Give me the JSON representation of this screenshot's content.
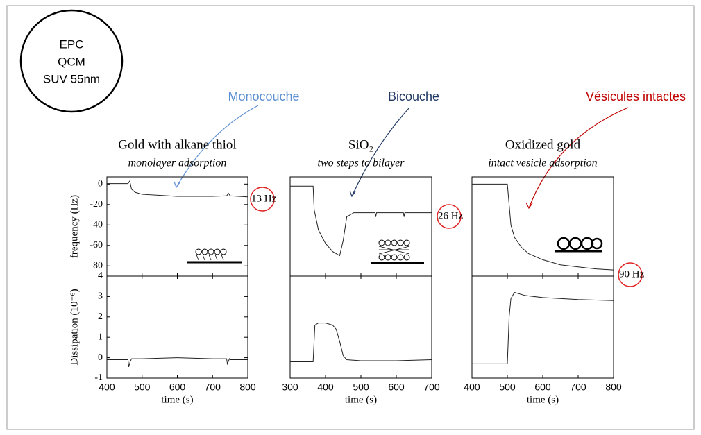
{
  "slide": {
    "badge": [
      "EPC",
      "QCM",
      "SUV 55nm"
    ],
    "annotations": [
      {
        "text": "Monocouche",
        "color": "#5b8fd1"
      },
      {
        "text": "Bicouche",
        "color": "#1f3864"
      },
      {
        "text": "Vésicules intactes",
        "color": "#c00000"
      }
    ]
  },
  "chart_data": [
    {
      "type": "line",
      "title": "Gold with alkane thiol",
      "subtitle": "monolayer adsorption",
      "ylabel": "frequency (Hz)",
      "annotation": "13 Hz",
      "color": "#222222",
      "x": [
        400,
        460,
        465,
        470,
        480,
        500,
        550,
        600,
        650,
        700,
        740,
        745,
        750,
        800
      ],
      "values": [
        0.5,
        0.5,
        3,
        -5,
        -8,
        -10,
        -11,
        -12,
        -12,
        -12,
        -11.5,
        -9,
        -11.5,
        -12.5
      ],
      "xlim": [
        400,
        800
      ],
      "ylim": [
        -90,
        7
      ],
      "yticks": [
        0,
        -20,
        -40,
        -60,
        -80
      ]
    },
    {
      "type": "line",
      "ylabel": "Dissipation (10⁻⁶)",
      "xlabel": "time (s)",
      "color": "#222222",
      "x": [
        400,
        460,
        462,
        466,
        470,
        500,
        600,
        700,
        740,
        742,
        748,
        750,
        800
      ],
      "values": [
        -0.1,
        -0.1,
        -0.45,
        -0.2,
        -0.05,
        -0.05,
        0,
        -0.05,
        -0.05,
        -0.3,
        -0.05,
        -0.1,
        -0.1
      ],
      "xlim": [
        400,
        800
      ],
      "ylim": [
        -1,
        4
      ],
      "xticks": [
        400,
        500,
        600,
        700,
        800
      ],
      "yticks": [
        -1,
        0,
        1,
        2,
        3,
        4
      ]
    },
    {
      "type": "line",
      "title": "SiO₂",
      "subtitle": "two steps to bilayer",
      "annotation": "26 Hz",
      "color": "#222222",
      "x": [
        300,
        365,
        368,
        380,
        400,
        420,
        440,
        450,
        460,
        480,
        500,
        540,
        542,
        544,
        620,
        622,
        624,
        700
      ],
      "values": [
        -2,
        -2,
        -25,
        -45,
        -58,
        -66,
        -70,
        -55,
        -32,
        -28,
        -28,
        -28,
        -32,
        -28,
        -28,
        -32,
        -28,
        -28
      ],
      "xlim": [
        300,
        700
      ],
      "ylim": [
        -90,
        7
      ]
    },
    {
      "type": "line",
      "xlabel": "time (s)",
      "color": "#222222",
      "x": [
        300,
        365,
        370,
        380,
        400,
        420,
        430,
        440,
        450,
        460,
        500,
        600,
        700
      ],
      "values": [
        -0.2,
        -0.2,
        1.6,
        1.7,
        1.7,
        1.6,
        1.4,
        0.8,
        0.1,
        -0.1,
        -0.15,
        -0.15,
        -0.1
      ],
      "xlim": [
        300,
        700
      ],
      "ylim": [
        -1,
        4
      ],
      "xticks": [
        300,
        400,
        500,
        600,
        700
      ]
    },
    {
      "type": "line",
      "title": "Oxidized gold",
      "subtitle": "intact vesicle adsorption",
      "annotation": "90 Hz",
      "color": "#222222",
      "x": [
        400,
        500,
        505,
        510,
        520,
        540,
        560,
        600,
        650,
        700,
        750,
        800
      ],
      "values": [
        0,
        0,
        -20,
        -40,
        -52,
        -62,
        -68,
        -74,
        -79,
        -81,
        -83,
        -84
      ],
      "xlim": [
        400,
        800
      ],
      "ylim": [
        -90,
        7
      ]
    },
    {
      "type": "line",
      "xlabel": "time (s)",
      "color": "#222222",
      "x": [
        400,
        500,
        505,
        510,
        520,
        550,
        600,
        700,
        800
      ],
      "values": [
        -0.3,
        -0.3,
        2,
        2.9,
        3.2,
        3.05,
        2.95,
        2.85,
        2.8
      ],
      "xlim": [
        400,
        800
      ],
      "ylim": [
        -1,
        4
      ],
      "xticks": [
        400,
        500,
        600,
        700,
        800
      ]
    }
  ]
}
